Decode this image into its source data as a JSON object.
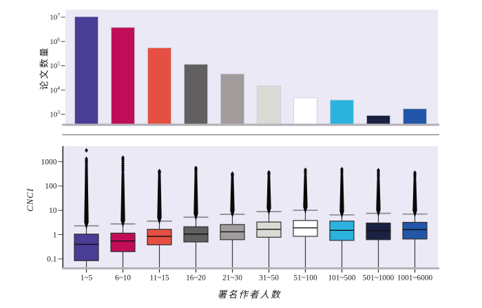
{
  "palette": {
    "plot_background": "#eae9f5",
    "axis_band_gray": "#b5b2b8",
    "separator_gray": "#8b898d",
    "whisker_cap_gray": "#8a878d",
    "text_color": "#1a1a1a",
    "category_colors": [
      "#4a3d96",
      "#c00d58",
      "#e65043",
      "#615f5f",
      "#a39c9c",
      "#d9dbd5",
      "#ffffff",
      "#2bb3de",
      "#1a2142",
      "#2356a8"
    ]
  },
  "chart_data": [
    {
      "type": "bar",
      "ylabel": "论文数量",
      "yscale": "log",
      "ylim": [
        400,
        15000000
      ],
      "y_ticks": [
        1000,
        10000,
        100000,
        1000000,
        10000000
      ],
      "grid": false,
      "x_tick_labels_shown": false,
      "categories": [
        "1~5",
        "6~10",
        "11~15",
        "16~20",
        "21~30",
        "31~50",
        "51~100",
        "101~500",
        "501~1000",
        "1001~6000"
      ],
      "values": [
        10500000,
        3800000,
        550000,
        115000,
        46000,
        14500,
        4800,
        3900,
        900,
        1700
      ],
      "bar_colors": [
        "#4a3d96",
        "#c00d58",
        "#e65043",
        "#615f5f",
        "#a39c9c",
        "#d9dbd5",
        "#ffffff",
        "#2bb3de",
        "#1a2142",
        "#2356a8"
      ]
    },
    {
      "type": "box",
      "ylabel": "CNCI",
      "xlabel": "署名作者人数",
      "yscale": "log",
      "y_ticks": [
        0.1,
        1,
        10,
        100,
        1000
      ],
      "grid": false,
      "categories": [
        "1~5",
        "6~10",
        "11~15",
        "16~20",
        "21~30",
        "31~50",
        "51~100",
        "101~500",
        "501~1000",
        "1001~6000"
      ],
      "series": [
        {
          "category": "1~5",
          "color": "#4a3d96",
          "q1": 0.085,
          "median": 0.4,
          "q3": 1.05,
          "whisker_high": 2.3,
          "whisker_low": null,
          "whisker_low_clipped": true,
          "outlier_dense_to": 700,
          "outliers": [
            800,
            950,
            1100,
            1300,
            2900
          ]
        },
        {
          "category": "6~10",
          "color": "#c00d58",
          "q1": 0.2,
          "median": 0.55,
          "q3": 1.15,
          "whisker_high": 2.75,
          "whisker_low": null,
          "whisker_low_clipped": true,
          "outlier_dense_to": 350,
          "outliers": [
            420,
            500,
            600,
            700,
            850,
            1050,
            1250,
            1450
          ]
        },
        {
          "category": "11~15",
          "color": "#e65043",
          "q1": 0.38,
          "median": 0.85,
          "q3": 1.65,
          "whisker_high": 3.6,
          "whisker_low": null,
          "whisker_low_clipped": true,
          "outlier_dense_to": 300,
          "outliers": [
            340,
            380,
            410
          ]
        },
        {
          "category": "16~20",
          "color": "#615f5f",
          "q1": 0.5,
          "median": 1.05,
          "q3": 2.1,
          "whisker_high": 5.2,
          "whisker_low": null,
          "whisker_low_clipped": true,
          "outlier_dense_to": 380,
          "outliers": [
            430,
            490,
            550
          ]
        },
        {
          "category": "21~30",
          "color": "#a39c9c",
          "q1": 0.62,
          "median": 1.3,
          "q3": 2.6,
          "whisker_high": 6.8,
          "whisker_low": null,
          "whisker_low_clipped": true,
          "outlier_dense_to": 230,
          "outliers": [
            260,
            290,
            320
          ]
        },
        {
          "category": "31~50",
          "color": "#d9dbd5",
          "q1": 0.78,
          "median": 1.65,
          "q3": 3.3,
          "whisker_high": 8.8,
          "whisker_low": null,
          "whisker_low_clipped": true,
          "outlier_dense_to": 250,
          "outliers": [
            290,
            320,
            360
          ]
        },
        {
          "category": "51~100",
          "color": "#ffffff",
          "q1": 0.85,
          "median": 1.9,
          "q3": 3.8,
          "whisker_high": 10,
          "whisker_low": null,
          "whisker_low_clipped": true,
          "outlier_dense_to": 280,
          "outliers": [
            330,
            390,
            460
          ]
        },
        {
          "category": "101~500",
          "color": "#2bb3de",
          "q1": 0.58,
          "median": 1.5,
          "q3": 3.6,
          "whisker_high": 6.5,
          "whisker_low": null,
          "whisker_low_clipped": true,
          "outlier_dense_to": 300,
          "outliers": [
            350,
            410,
            490
          ]
        },
        {
          "category": "501~1000",
          "color": "#1a2142",
          "q1": 0.62,
          "median": 1.45,
          "q3": 3.0,
          "whisker_high": 7.5,
          "whisker_low": null,
          "whisker_low_clipped": true,
          "outlier_dense_to": 200,
          "outliers": [
            230,
            270,
            320,
            380,
            440
          ]
        },
        {
          "category": "1001~6000",
          "color": "#2356a8",
          "q1": 0.66,
          "median": 1.6,
          "q3": 3.2,
          "whisker_high": 7.0,
          "whisker_low": null,
          "whisker_low_clipped": true,
          "outlier_dense_to": 190,
          "outliers": [
            220,
            260,
            300,
            350
          ]
        }
      ]
    }
  ]
}
